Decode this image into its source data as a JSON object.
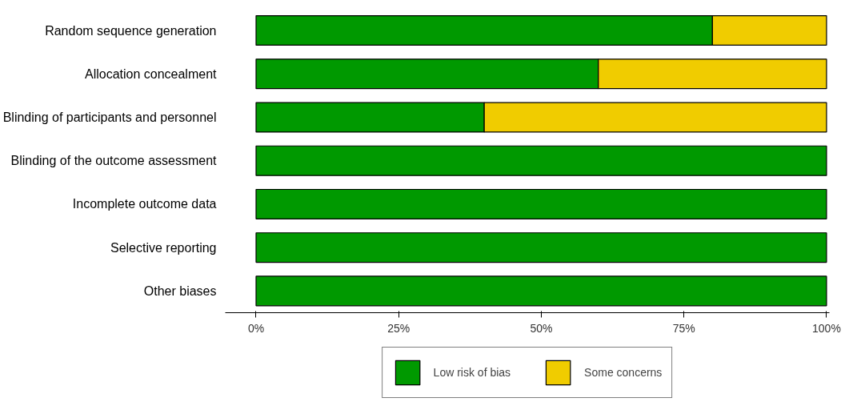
{
  "chart_data": {
    "type": "bar",
    "orientation": "horizontal",
    "stacked": true,
    "categories": [
      "Random sequence generation",
      "Allocation concealment",
      "Blinding of participants and personnel",
      "Blinding of the outcome assessment",
      "Incomplete outcome data",
      "Selective reporting",
      "Other biases"
    ],
    "series": [
      {
        "name": "Low risk of bias",
        "color": "#009900",
        "values": [
          80,
          60,
          40,
          100,
          100,
          100,
          100
        ]
      },
      {
        "name": "Some concerns",
        "color": "#f0cc00",
        "values": [
          20,
          40,
          60,
          0,
          0,
          0,
          0
        ]
      }
    ],
    "xlim": [
      -5.4,
      100.5
    ],
    "xticks": [
      {
        "value": 0,
        "label": "0%"
      },
      {
        "value": 25,
        "label": "25%"
      },
      {
        "value": 50,
        "label": "50%"
      },
      {
        "value": 75,
        "label": "75%"
      },
      {
        "value": 100,
        "label": "100%"
      }
    ],
    "grid": false,
    "legend": "bottom"
  }
}
